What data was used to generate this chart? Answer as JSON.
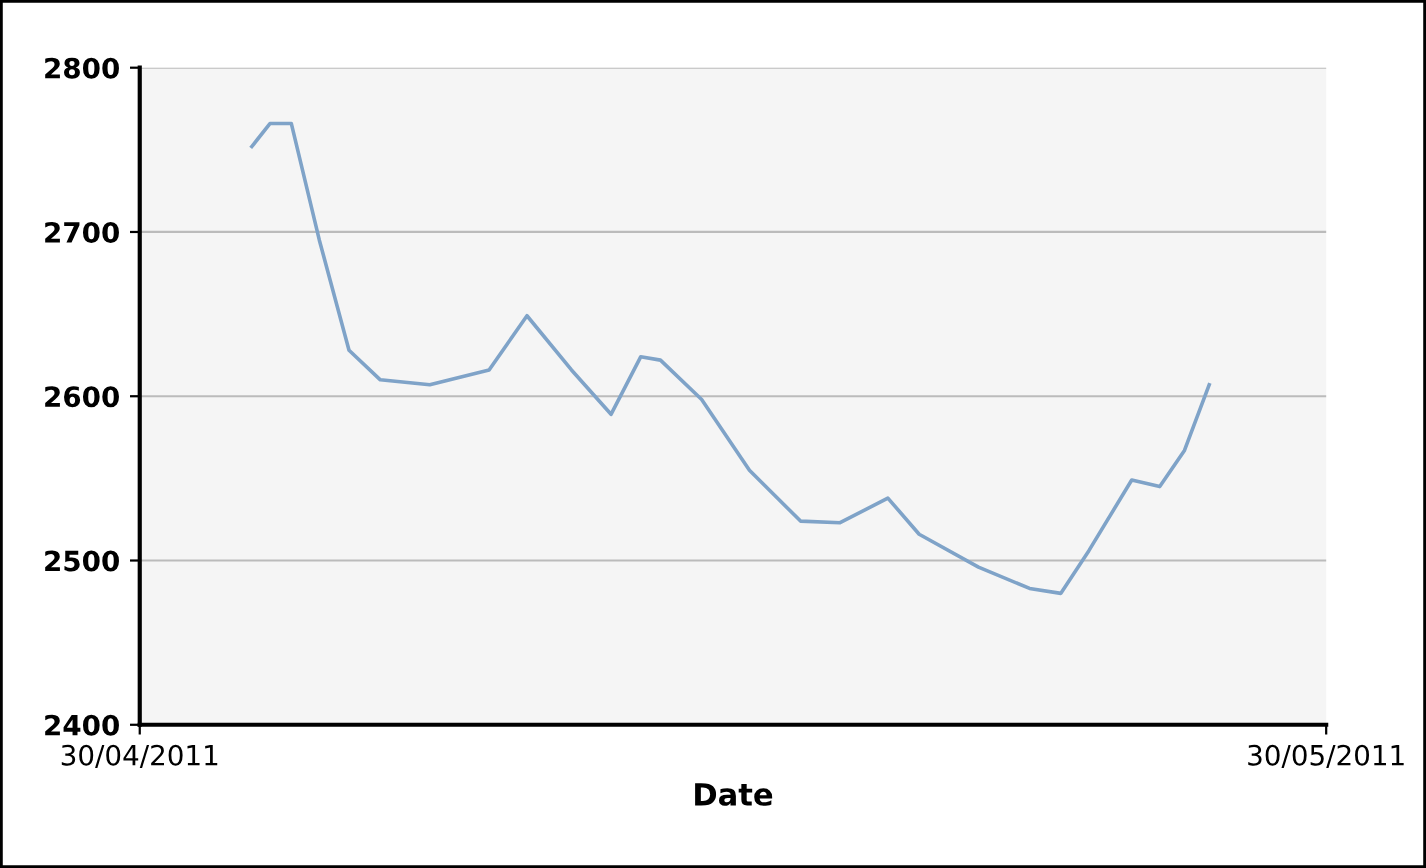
{
  "chart_data": {
    "type": "line",
    "xlabel": "Date",
    "x": [
      "2011-05-02T20:00",
      "2011-05-03T07:00",
      "2011-05-03T20:00",
      "2011-05-04T13:00",
      "2011-05-05T07:00",
      "2011-05-06T02:00",
      "2011-05-07T08:00",
      "2011-05-08T20:00",
      "2011-05-09T19:00",
      "2011-05-10T22:00",
      "2011-05-11T22:00",
      "2011-05-12T16:00",
      "2011-05-13T04:00",
      "2011-05-14T05:00",
      "2011-05-15T10:00",
      "2011-05-16T17:00",
      "2011-05-17T17:00",
      "2011-05-18T22:00",
      "2011-05-19T17:00",
      "2011-05-21T05:00",
      "2011-05-22T12:00",
      "2011-05-23T07:00",
      "2011-05-24T00:00",
      "2011-05-25T02:00",
      "2011-05-25T19:00",
      "2011-05-26T10:00",
      "2011-05-27T01:00"
    ],
    "series": [
      {
        "color": "#7fa3c8",
        "values": [
          2752,
          2766,
          2766,
          2695,
          2628,
          2610,
          2607,
          2616,
          2649,
          2616,
          2589,
          2624,
          2622,
          2598,
          2555,
          2524,
          2523,
          2538,
          2516,
          2496,
          2483,
          2480,
          2506,
          2549,
          2545,
          2567,
          2607
        ]
      }
    ],
    "xlim": [
      "2011-04-30",
      "2011-05-30"
    ],
    "xticks": [
      {
        "value": "2011-04-30",
        "label": "30/04/2011"
      },
      {
        "value": "2011-05-30",
        "label": "30/05/2011"
      }
    ],
    "ylim": [
      2400,
      2800
    ],
    "yticks": [
      2400,
      2500,
      2600,
      2700,
      2800
    ],
    "grid": "y",
    "marker": "none",
    "line_style": "solid",
    "legend": false
  }
}
